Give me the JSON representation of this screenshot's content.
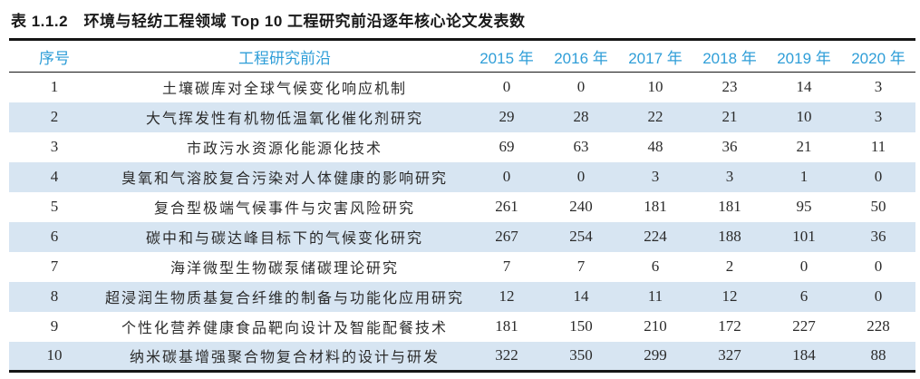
{
  "page": {
    "title": "表 1.1.2　环境与轻纺工程领域 Top 10 工程研究前沿逐年核心论文发表数"
  },
  "table": {
    "headers": [
      "序号",
      "工程研究前沿",
      "2015 年",
      "2016 年",
      "2017 年",
      "2018 年",
      "2019 年",
      "2020 年"
    ],
    "rows": [
      {
        "rank": "1",
        "front": "土壤碳库对全球气候变化响应机制",
        "values": [
          "0",
          "0",
          "10",
          "23",
          "14",
          "3"
        ]
      },
      {
        "rank": "2",
        "front": "大气挥发性有机物低温氧化催化剂研究",
        "values": [
          "29",
          "28",
          "22",
          "21",
          "10",
          "3"
        ]
      },
      {
        "rank": "3",
        "front": "市政污水资源化能源化技术",
        "values": [
          "69",
          "63",
          "48",
          "36",
          "21",
          "11"
        ]
      },
      {
        "rank": "4",
        "front": "臭氧和气溶胶复合污染对人体健康的影响研究",
        "values": [
          "0",
          "0",
          "3",
          "3",
          "1",
          "0"
        ]
      },
      {
        "rank": "5",
        "front": "复合型极端气候事件与灾害风险研究",
        "values": [
          "261",
          "240",
          "181",
          "181",
          "95",
          "50"
        ]
      },
      {
        "rank": "6",
        "front": "碳中和与碳达峰目标下的气候变化研究",
        "values": [
          "267",
          "254",
          "224",
          "188",
          "101",
          "36"
        ]
      },
      {
        "rank": "7",
        "front": "海洋微型生物碳泵储碳理论研究",
        "values": [
          "7",
          "7",
          "6",
          "2",
          "0",
          "0"
        ]
      },
      {
        "rank": "8",
        "front": "超浸润生物质基复合纤维的制备与功能化应用研究",
        "values": [
          "12",
          "14",
          "11",
          "12",
          "6",
          "0"
        ]
      },
      {
        "rank": "9",
        "front": "个性化营养健康食品靶向设计及智能配餐技术",
        "values": [
          "181",
          "150",
          "210",
          "172",
          "227",
          "228"
        ]
      },
      {
        "rank": "10",
        "front": "纳米碳基增强聚合物复合材料的设计与研发",
        "values": [
          "322",
          "350",
          "299",
          "327",
          "184",
          "88"
        ]
      }
    ]
  },
  "colors": {
    "header_text": "#2f9ed8",
    "alt_row_background": "#d7e5f2",
    "rule": "#151515",
    "body_text": "#2b2b2b",
    "title_text": "#1a1a1a"
  }
}
